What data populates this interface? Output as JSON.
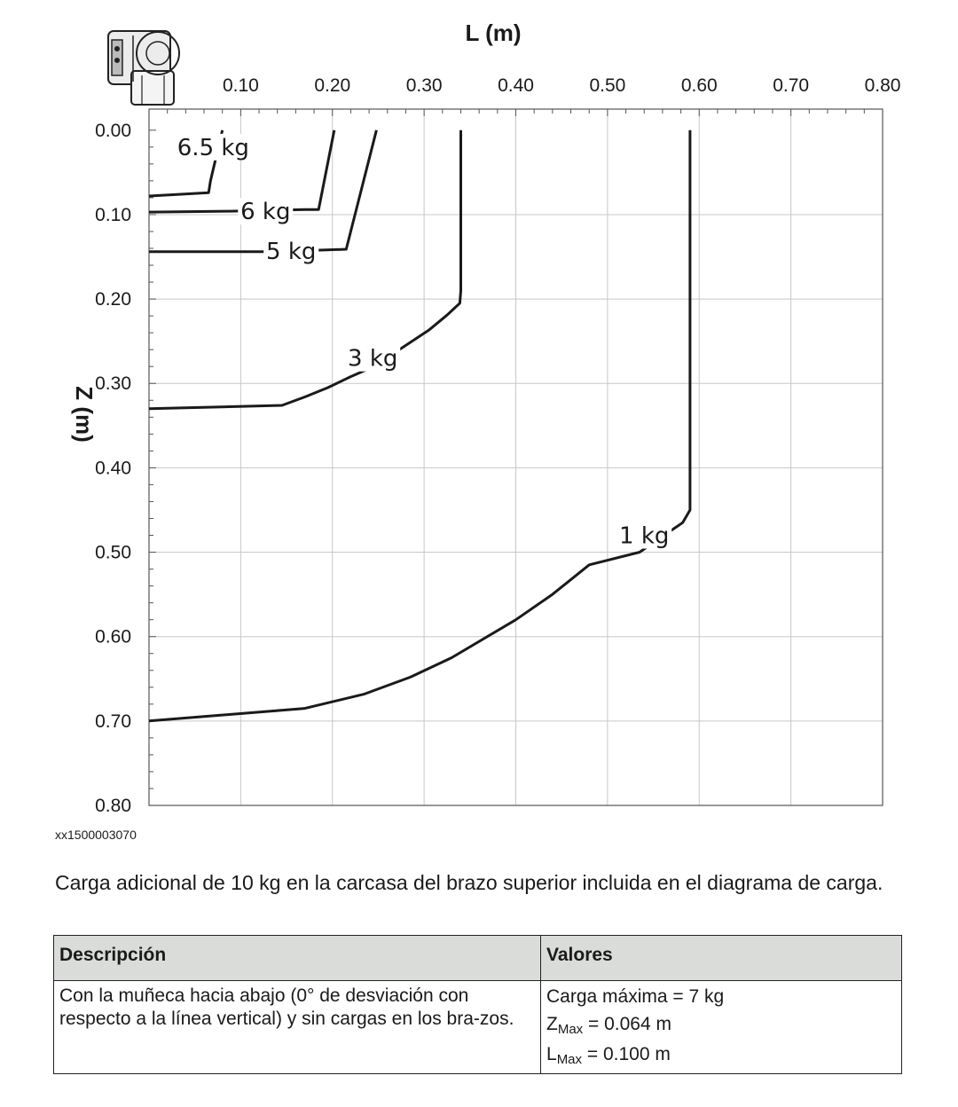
{
  "chart_data": {
    "type": "line",
    "xlabel": "L (m)",
    "ylabel": "Z (m)",
    "xlim": [
      0.0,
      0.8
    ],
    "ylim": [
      0.0,
      0.8
    ],
    "y_inverted": true,
    "x_axis_position": "top",
    "grid": true,
    "x_ticks": [
      "0.10",
      "0.20",
      "0.30",
      "0.40",
      "0.50",
      "0.60",
      "0.70",
      "0.80"
    ],
    "y_ticks": [
      "0.00",
      "0.10",
      "0.20",
      "0.30",
      "0.40",
      "0.50",
      "0.60",
      "0.70",
      "0.80"
    ],
    "series": [
      {
        "name": "6.5 kg",
        "points": [
          [
            0.0,
            0.078
          ],
          [
            0.065,
            0.074
          ],
          [
            0.067,
            0.06
          ],
          [
            0.08,
            0.0
          ]
        ]
      },
      {
        "name": "6 kg",
        "points": [
          [
            0.0,
            0.097
          ],
          [
            0.088,
            0.096
          ],
          [
            0.17,
            0.094
          ],
          [
            0.185,
            0.094
          ],
          [
            0.202,
            0.0
          ]
        ]
      },
      {
        "name": "5 kg",
        "points": [
          [
            0.0,
            0.144
          ],
          [
            0.13,
            0.144
          ],
          [
            0.19,
            0.142
          ],
          [
            0.215,
            0.141
          ],
          [
            0.248,
            0.0
          ]
        ]
      },
      {
        "name": "3 kg",
        "points": [
          [
            0.0,
            0.33
          ],
          [
            0.145,
            0.326
          ],
          [
            0.17,
            0.316
          ],
          [
            0.195,
            0.305
          ],
          [
            0.22,
            0.292
          ],
          [
            0.245,
            0.28
          ],
          [
            0.305,
            0.237
          ],
          [
            0.325,
            0.219
          ],
          [
            0.339,
            0.205
          ],
          [
            0.34,
            0.19
          ],
          [
            0.34,
            0.0
          ]
        ]
      },
      {
        "name": "1 kg",
        "points": [
          [
            0.0,
            0.7
          ],
          [
            0.17,
            0.685
          ],
          [
            0.235,
            0.668
          ],
          [
            0.285,
            0.648
          ],
          [
            0.33,
            0.625
          ],
          [
            0.4,
            0.58
          ],
          [
            0.44,
            0.55
          ],
          [
            0.48,
            0.515
          ],
          [
            0.535,
            0.5
          ],
          [
            0.582,
            0.465
          ],
          [
            0.59,
            0.45
          ],
          [
            0.59,
            0.0
          ]
        ]
      }
    ],
    "series_labels": [
      "6.5 kg",
      "6 kg",
      "5 kg",
      "3 kg",
      "1 kg"
    ]
  },
  "reference_id": "xx1500003070",
  "caption": "Carga adicional de 10 kg en la carcasa del brazo superior incluida en el diagrama de carga.",
  "table": {
    "headers": [
      "Descripción",
      "Valores"
    ],
    "description": "Con la muñeca hacia abajo (0° de desviación con respecto a la línea vertical) y sin cargas en los bra-zos.",
    "values": {
      "max_load": "Carga máxima = 7 kg",
      "z_prefix": "Z",
      "z_sub": "Max",
      "z_value": " = 0.064 m",
      "l_prefix": "L",
      "l_sub": "Max",
      "l_value": " = 0.100 m"
    }
  }
}
